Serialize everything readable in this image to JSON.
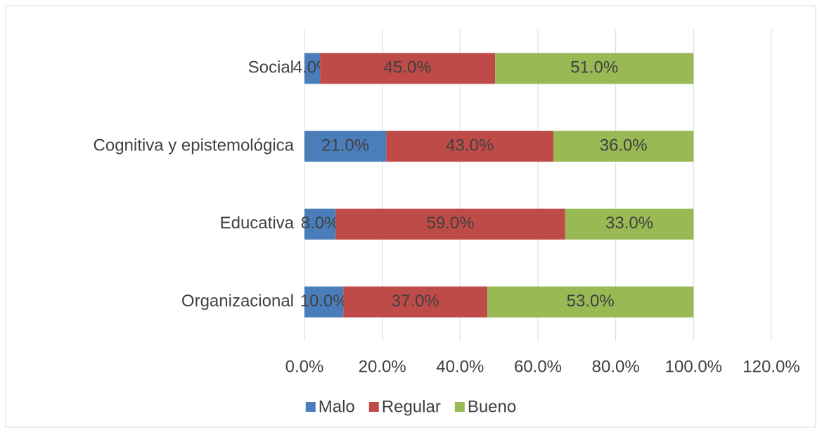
{
  "chart_data": {
    "type": "stacked_barh",
    "categories": [
      "Social",
      "Cognitiva y epistemológica",
      "Educativa",
      "Organizacional"
    ],
    "series": [
      {
        "name": "Malo",
        "color": "#4a7ebb",
        "values": [
          4,
          21,
          8,
          10
        ],
        "value_labels": [
          "4.0%",
          "21.0%",
          "8.0%",
          "10.0%"
        ]
      },
      {
        "name": "Regular",
        "color": "#be4b48",
        "values": [
          45,
          43,
          59,
          37
        ],
        "value_labels": [
          "45.0%",
          "43.0%",
          "59.0%",
          "37.0%"
        ]
      },
      {
        "name": "Bueno",
        "color": "#98b954",
        "values": [
          51,
          36,
          33,
          53
        ],
        "value_labels": [
          "51.0%",
          "36.0%",
          "33.0%",
          "53.0%"
        ]
      }
    ],
    "xlim": [
      0,
      120
    ],
    "xticks": [
      {
        "value": 0,
        "label": "0.0%"
      },
      {
        "value": 20,
        "label": "20.0%"
      },
      {
        "value": 40,
        "label": "40.0%"
      },
      {
        "value": 60,
        "label": "60.0%"
      },
      {
        "value": 80,
        "label": "80.0%"
      },
      {
        "value": 100,
        "label": "100.0%"
      },
      {
        "value": 120,
        "label": "120.0%"
      }
    ],
    "grid": true,
    "legend": "bottom"
  }
}
